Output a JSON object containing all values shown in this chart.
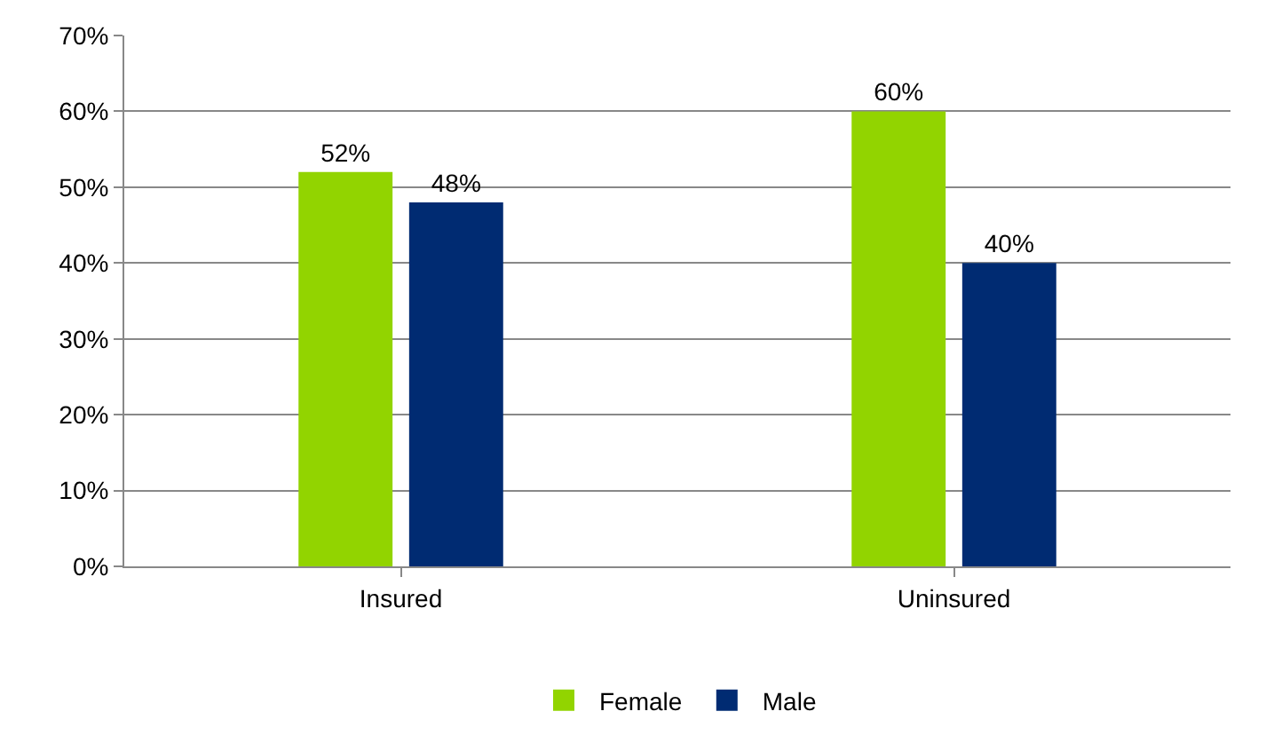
{
  "chart_data": {
    "type": "bar",
    "categories": [
      "Insured",
      "Uninsured"
    ],
    "series": [
      {
        "name": "Female",
        "color": "#92d400",
        "values": [
          52,
          60
        ],
        "value_labels": [
          "52%",
          "60%"
        ]
      },
      {
        "name": "Male",
        "color": "#002b72",
        "values": [
          48,
          40
        ],
        "value_labels": [
          "48%",
          "40%"
        ]
      }
    ],
    "ylim": [
      0,
      70
    ],
    "yticks": [
      {
        "value": 0,
        "label": "0%"
      },
      {
        "value": 10,
        "label": "10%"
      },
      {
        "value": 20,
        "label": "20%"
      },
      {
        "value": 30,
        "label": "30%"
      },
      {
        "value": 40,
        "label": "40%"
      },
      {
        "value": 50,
        "label": "50%"
      },
      {
        "value": 60,
        "label": "60%"
      },
      {
        "value": 70,
        "label": "70%"
      }
    ],
    "grid": "y",
    "legend": "bottom"
  }
}
